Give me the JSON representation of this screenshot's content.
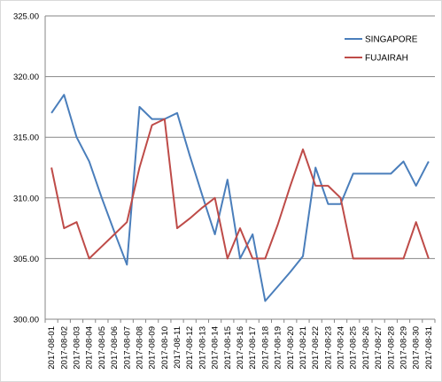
{
  "chart_data": {
    "type": "line",
    "title": "",
    "xlabel": "",
    "ylabel": "",
    "ylim": [
      300,
      325
    ],
    "y_ticks": [
      "300.00",
      "305.00",
      "310.00",
      "315.00",
      "320.00",
      "325.00"
    ],
    "grid": "horizontal",
    "legend_position": "top-right",
    "categories": [
      "2017-08-01",
      "2017-08-02",
      "2017-08-03",
      "2017-08-04",
      "2017-08-05",
      "2017-08-06",
      "2017-08-07",
      "2017-08-08",
      "2017-08-09",
      "2017-08-10",
      "2017-08-11",
      "2017-08-12",
      "2017-08-13",
      "2017-08-14",
      "2017-08-15",
      "2017-08-16",
      "2017-08-17",
      "2017-08-18",
      "2017-08-19",
      "2017-08-20",
      "2017-08-21",
      "2017-08-22",
      "2017-08-23",
      "2017-08-24",
      "2017-08-25",
      "2017-08-26",
      "2017-08-27",
      "2017-08-28",
      "2017-08-29",
      "2017-08-30",
      "2017-08-31"
    ],
    "series": [
      {
        "name": "SINGAPORE",
        "color": "#4a7ebb",
        "values": [
          317,
          318.5,
          315,
          313,
          310,
          307.2,
          304.5,
          317.5,
          316.5,
          316.5,
          317,
          313.5,
          310.2,
          307,
          311.5,
          305,
          307,
          301.5,
          302.7,
          303.9,
          305.2,
          312.5,
          309.5,
          309.5,
          312,
          312,
          312,
          312,
          313,
          311,
          313
        ]
      },
      {
        "name": "FUJAIRAH",
        "color": "#be4b48",
        "values": [
          312.5,
          307.5,
          308,
          305,
          306,
          307,
          308,
          312.5,
          316,
          316.5,
          307.5,
          308.3,
          309.2,
          310,
          305,
          307.5,
          305,
          305,
          307.8,
          311,
          314,
          311,
          311,
          310,
          305,
          305,
          305,
          305,
          305,
          308,
          305
        ]
      }
    ]
  }
}
